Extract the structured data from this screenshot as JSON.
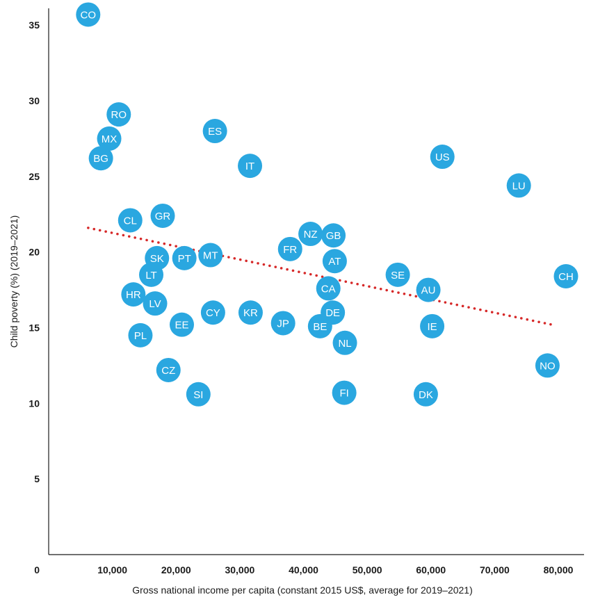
{
  "chart_data": {
    "type": "scatter",
    "title": "",
    "xlabel": "Gross national income per capita (constant 2015 US$, average for 2019–2021)",
    "ylabel": "Child poverty (%) (2019–2021)",
    "xlim": [
      0,
      82000
    ],
    "ylim": [
      0,
      37
    ],
    "x_ticks": [
      0,
      10000,
      20000,
      30000,
      40000,
      50000,
      60000,
      70000,
      80000
    ],
    "x_tick_labels": [
      "0",
      "10,000",
      "20,000",
      "30,000",
      "40,000",
      "50,000",
      "60,000",
      "70,000",
      "80,000"
    ],
    "y_ticks": [
      5,
      10,
      15,
      20,
      25,
      30,
      35
    ],
    "y_tick_labels": [
      "5",
      "10",
      "15",
      "20",
      "25",
      "30",
      "35"
    ],
    "grid": false,
    "legend": "none",
    "marker_color": "#2aa7e0",
    "trend_color": "#d62828",
    "trendline": {
      "x": [
        6200,
        79000
      ],
      "y": [
        21.6,
        15.2
      ]
    },
    "points": [
      {
        "label": "CO",
        "x": 6200,
        "y": 35.7
      },
      {
        "label": "RO",
        "x": 11000,
        "y": 29.1
      },
      {
        "label": "MX",
        "x": 9500,
        "y": 27.5
      },
      {
        "label": "BG",
        "x": 8200,
        "y": 26.2
      },
      {
        "label": "ES",
        "x": 26100,
        "y": 28.0
      },
      {
        "label": "IT",
        "x": 31600,
        "y": 25.7
      },
      {
        "label": "US",
        "x": 61800,
        "y": 26.3
      },
      {
        "label": "LU",
        "x": 73800,
        "y": 24.4
      },
      {
        "label": "CL",
        "x": 12800,
        "y": 22.1
      },
      {
        "label": "GR",
        "x": 17900,
        "y": 22.4
      },
      {
        "label": "NZ",
        "x": 41100,
        "y": 21.2
      },
      {
        "label": "GB",
        "x": 44700,
        "y": 21.1
      },
      {
        "label": "FR",
        "x": 37900,
        "y": 20.2
      },
      {
        "label": "SK",
        "x": 17000,
        "y": 19.6
      },
      {
        "label": "PT",
        "x": 21300,
        "y": 19.6
      },
      {
        "label": "MT",
        "x": 25400,
        "y": 19.8
      },
      {
        "label": "AT",
        "x": 44900,
        "y": 19.4
      },
      {
        "label": "LT",
        "x": 16100,
        "y": 18.5
      },
      {
        "label": "SE",
        "x": 54800,
        "y": 18.5
      },
      {
        "label": "CH",
        "x": 81200,
        "y": 18.4
      },
      {
        "label": "CA",
        "x": 43900,
        "y": 17.6
      },
      {
        "label": "AU",
        "x": 59600,
        "y": 17.5
      },
      {
        "label": "HR",
        "x": 13300,
        "y": 17.2
      },
      {
        "label": "LV",
        "x": 16700,
        "y": 16.6
      },
      {
        "label": "CY",
        "x": 25800,
        "y": 16.0
      },
      {
        "label": "KR",
        "x": 31700,
        "y": 16.0
      },
      {
        "label": "DE",
        "x": 44600,
        "y": 16.0
      },
      {
        "label": "EE",
        "x": 20900,
        "y": 15.2
      },
      {
        "label": "JP",
        "x": 36800,
        "y": 15.3
      },
      {
        "label": "BE",
        "x": 42600,
        "y": 15.1
      },
      {
        "label": "IE",
        "x": 60200,
        "y": 15.1
      },
      {
        "label": "PL",
        "x": 14400,
        "y": 14.5
      },
      {
        "label": "NL",
        "x": 46500,
        "y": 14.0
      },
      {
        "label": "NO",
        "x": 78300,
        "y": 12.5
      },
      {
        "label": "CZ",
        "x": 18800,
        "y": 12.2
      },
      {
        "label": "SI",
        "x": 23500,
        "y": 10.6
      },
      {
        "label": "FI",
        "x": 46400,
        "y": 10.7
      },
      {
        "label": "DK",
        "x": 59200,
        "y": 10.6
      }
    ]
  }
}
